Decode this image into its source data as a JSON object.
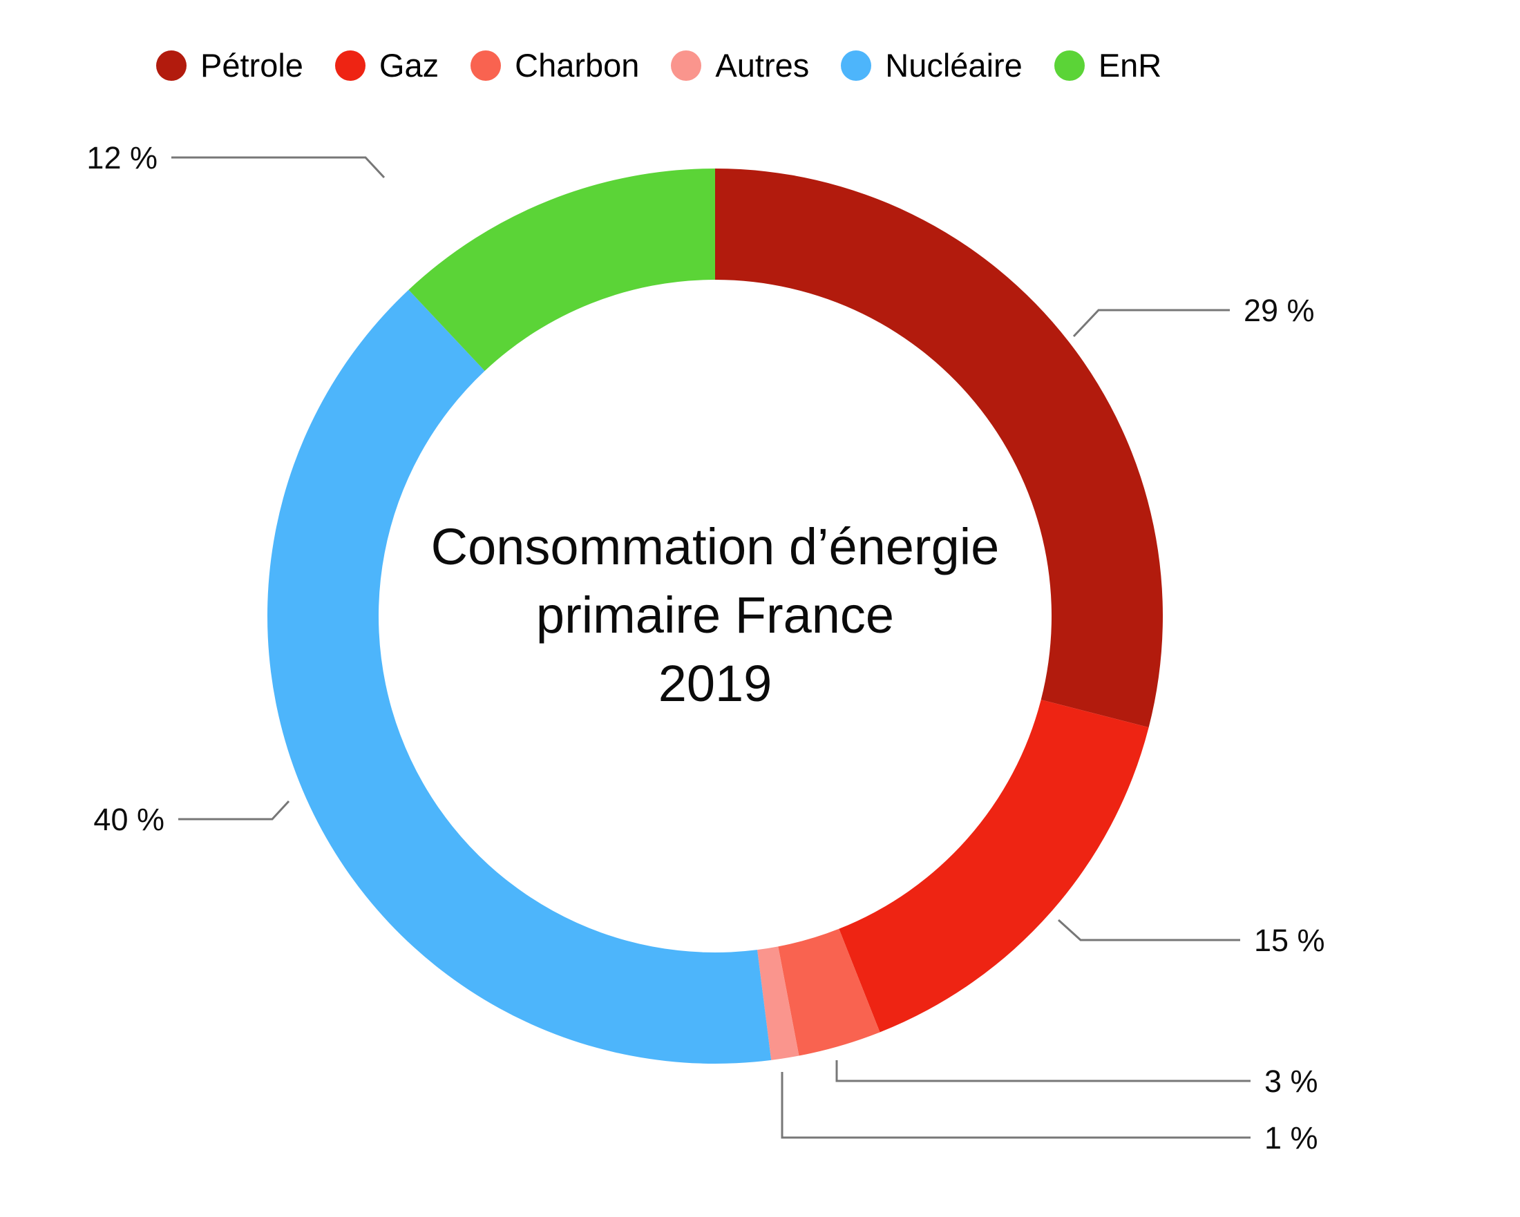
{
  "chart_data": {
    "type": "pie",
    "donut": true,
    "title": "Consommation d’énergie primaire France 2019",
    "title_lines": [
      "Consommation d’énergie",
      "primaire France",
      "2019"
    ],
    "categories": [
      "Pétrole",
      "Gaz",
      "Charbon",
      "Autres",
      "Nucléaire",
      "EnR"
    ],
    "values": [
      29,
      15,
      3,
      1,
      40,
      12
    ],
    "unit": "%",
    "labels": [
      "29 %",
      "15 %",
      "3 %",
      "1 %",
      "40 %",
      "12 %"
    ],
    "colors": [
      "#B21B0D",
      "#EE2413",
      "#F96350",
      "#FA958D",
      "#4DB5FB",
      "#5BD437"
    ],
    "legend_position": "top",
    "start_angle_deg": 0,
    "direction": "clockwise",
    "leader_line_color": "#777777",
    "text_color": "#0d0d0d"
  }
}
